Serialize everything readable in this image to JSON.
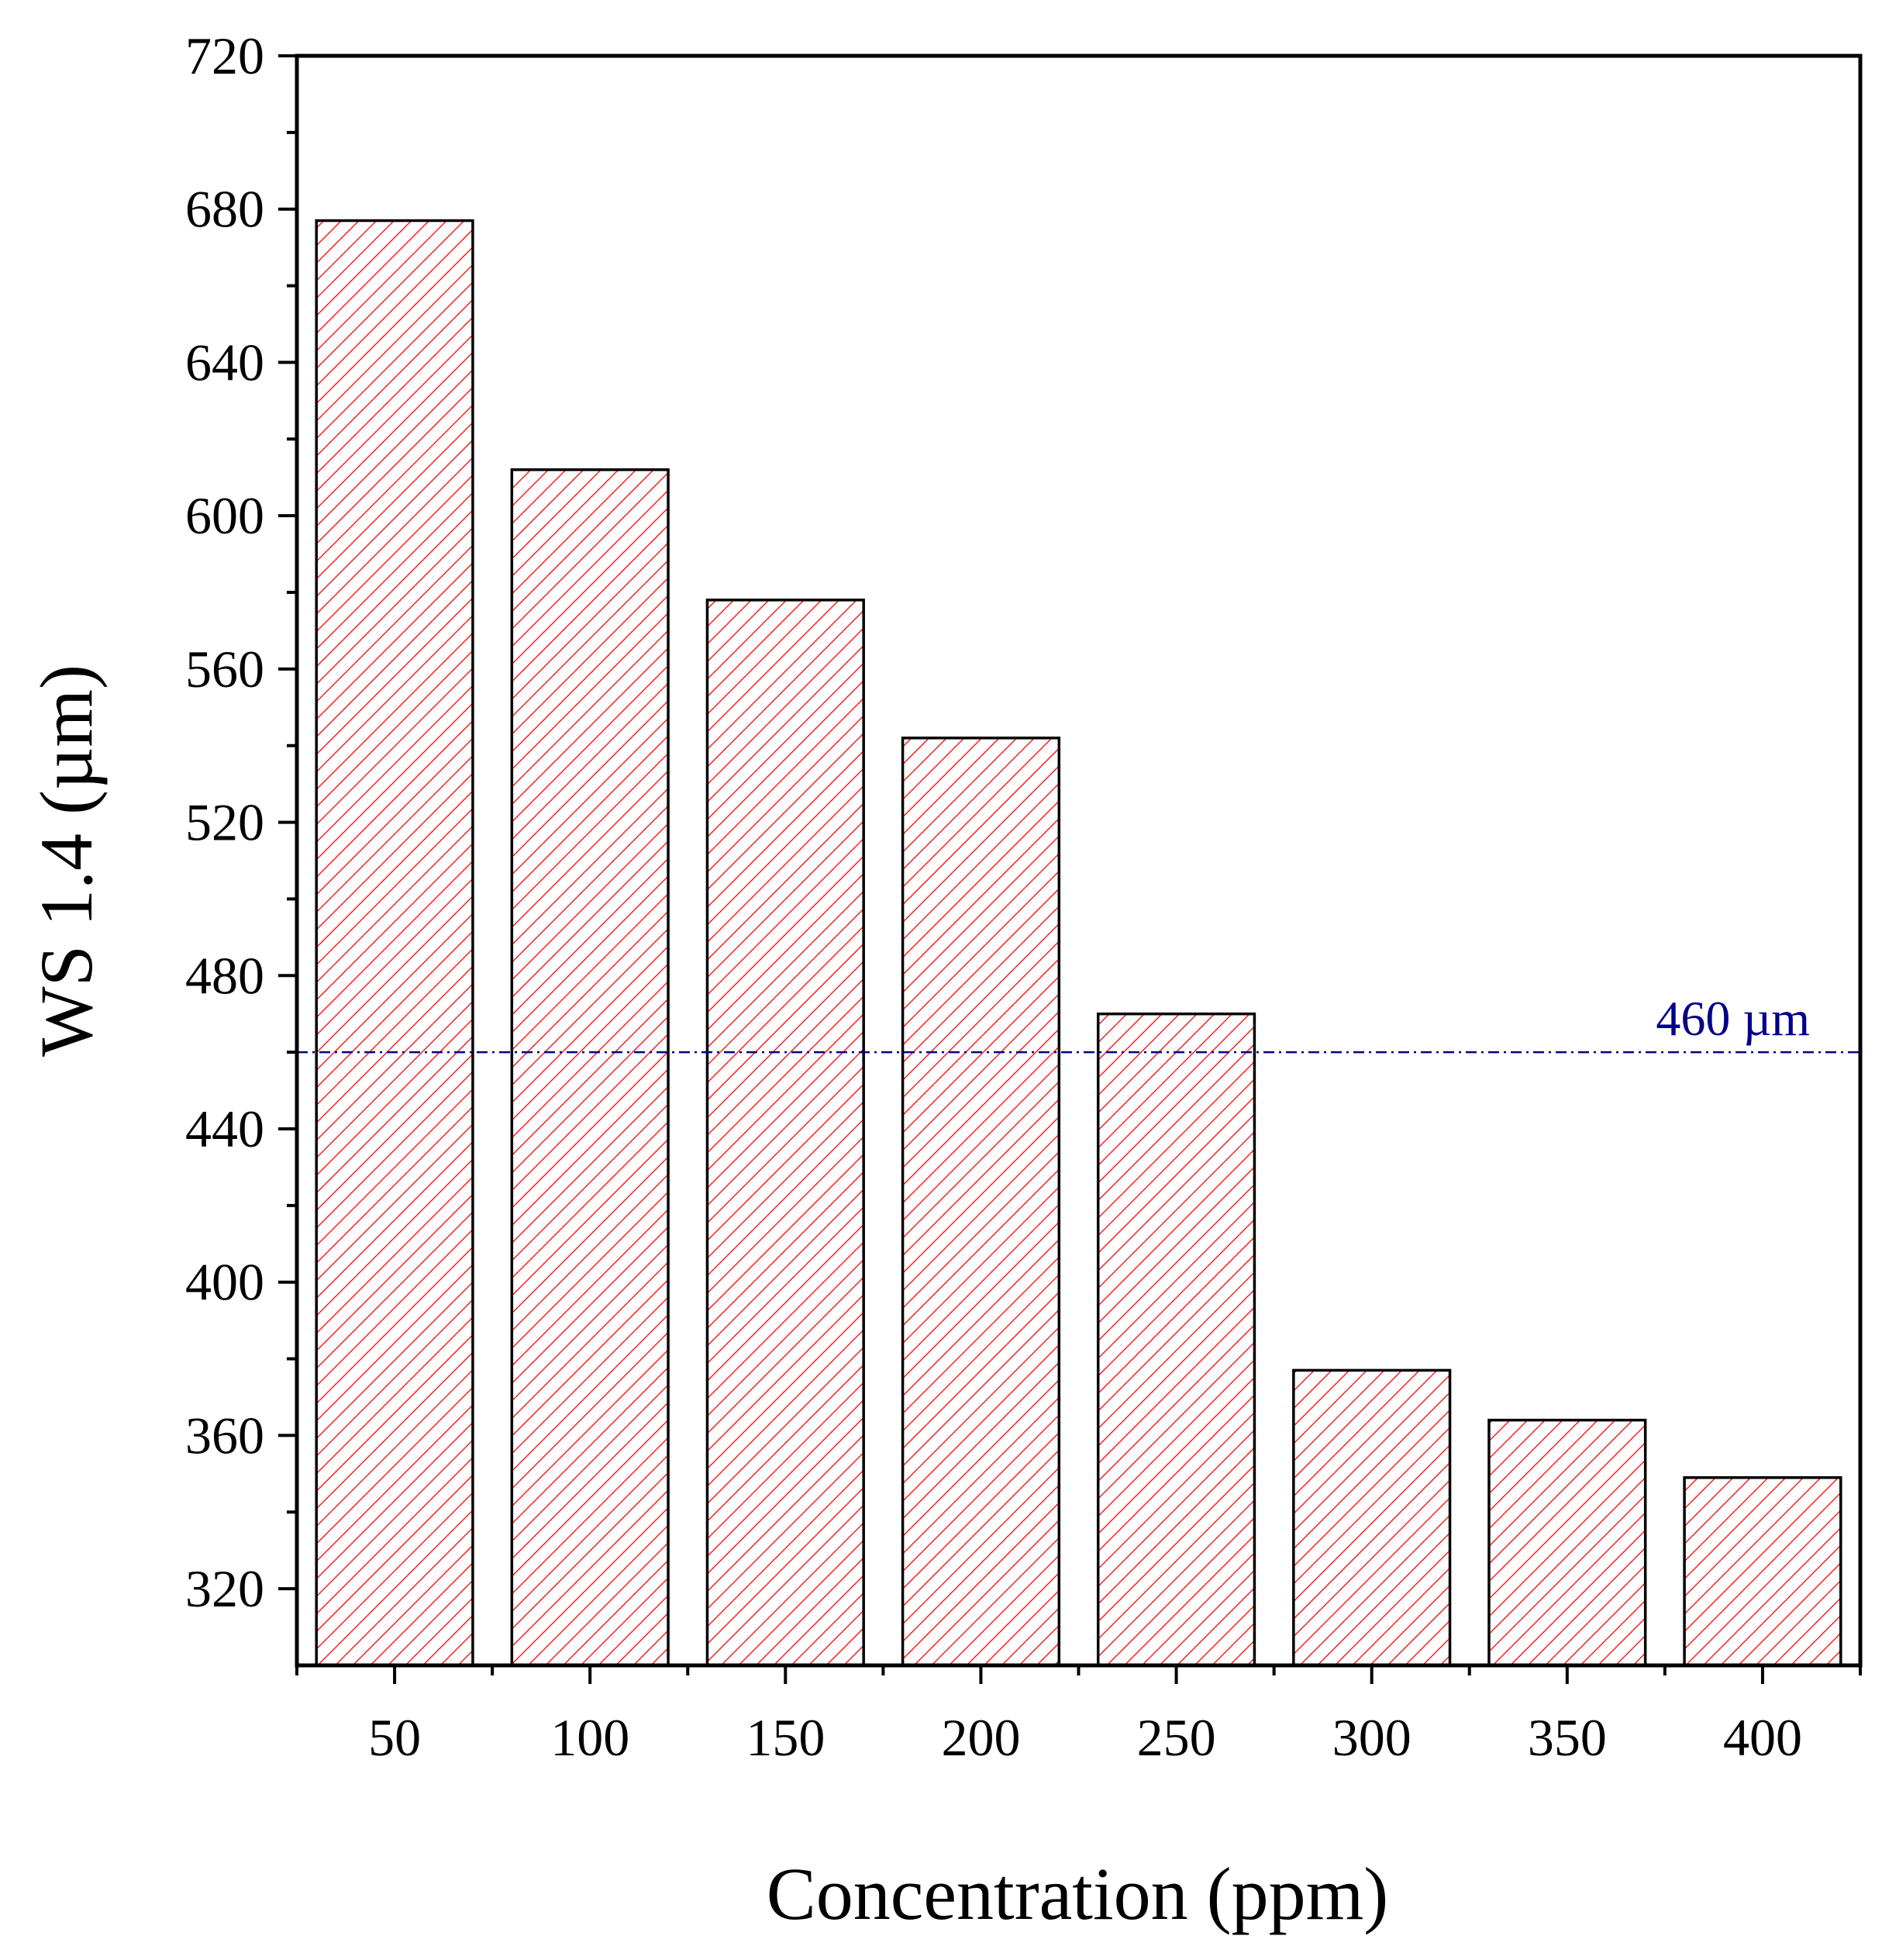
{
  "chart_data": {
    "type": "bar",
    "title": "",
    "xlabel": "Concentration (ppm)",
    "ylabel": "WS 1.4 (µm)",
    "categories": [
      "50",
      "100",
      "150",
      "200",
      "250",
      "300",
      "350",
      "400"
    ],
    "values": [
      677,
      612,
      578,
      542,
      470,
      377,
      364,
      349
    ],
    "ylim": [
      300,
      720
    ],
    "yticks": [
      "320",
      "360",
      "400",
      "440",
      "480",
      "520",
      "560",
      "600",
      "640",
      "680",
      "720"
    ],
    "reference_line": {
      "value": 460,
      "label": "460 µm",
      "style": "dash-dot"
    },
    "bar_fill": "hatched",
    "colors": {
      "bar_hatch": "#ff0000",
      "bar_edge": "#000000",
      "reference": "#00008b",
      "axis": "#000000"
    },
    "grid": false
  }
}
